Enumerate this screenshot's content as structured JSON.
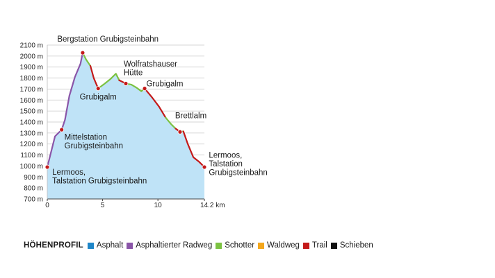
{
  "chart_data": {
    "type": "area",
    "y_ticks": [
      "2100 m",
      "2000 m",
      "1900 m",
      "1800 m",
      "1700 m",
      "1600 m",
      "1500 m",
      "1400 m",
      "1300 m",
      "1200 m",
      "1100 m",
      "1000 m",
      "900 m",
      "800 m",
      "700 m"
    ],
    "x_ticks": [
      "0",
      "5",
      "10",
      "14.2 km"
    ],
    "xlim": [
      0,
      14.2
    ],
    "ylim": [
      700,
      2100
    ],
    "grid": true,
    "fill_color": "#bfe3f7",
    "profile": [
      {
        "x": 0.0,
        "y": 990
      },
      {
        "x": 0.7,
        "y": 1270
      },
      {
        "x": 1.3,
        "y": 1330
      },
      {
        "x": 1.6,
        "y": 1420
      },
      {
        "x": 2.0,
        "y": 1640
      },
      {
        "x": 2.5,
        "y": 1810
      },
      {
        "x": 3.0,
        "y": 1930
      },
      {
        "x": 3.2,
        "y": 2030
      },
      {
        "x": 3.5,
        "y": 1970
      },
      {
        "x": 3.9,
        "y": 1910
      },
      {
        "x": 4.2,
        "y": 1800
      },
      {
        "x": 4.6,
        "y": 1705
      },
      {
        "x": 5.2,
        "y": 1750
      },
      {
        "x": 5.7,
        "y": 1790
      },
      {
        "x": 6.2,
        "y": 1840
      },
      {
        "x": 6.5,
        "y": 1780
      },
      {
        "x": 7.1,
        "y": 1750
      },
      {
        "x": 7.6,
        "y": 1740
      },
      {
        "x": 8.1,
        "y": 1710
      },
      {
        "x": 8.5,
        "y": 1680
      },
      {
        "x": 8.8,
        "y": 1705
      },
      {
        "x": 9.5,
        "y": 1620
      },
      {
        "x": 10.1,
        "y": 1540
      },
      {
        "x": 10.7,
        "y": 1440
      },
      {
        "x": 11.2,
        "y": 1380
      },
      {
        "x": 11.6,
        "y": 1340
      },
      {
        "x": 12.0,
        "y": 1310
      },
      {
        "x": 12.3,
        "y": 1315
      },
      {
        "x": 12.7,
        "y": 1200
      },
      {
        "x": 13.2,
        "y": 1080
      },
      {
        "x": 13.7,
        "y": 1040
      },
      {
        "x": 14.2,
        "y": 990
      }
    ],
    "segments": [
      {
        "surface": "Asphaltierter Radweg",
        "from": 0.0,
        "to": 3.2
      },
      {
        "surface": "Schotter",
        "from": 3.2,
        "to": 3.9
      },
      {
        "surface": "Trail",
        "from": 3.9,
        "to": 4.6
      },
      {
        "surface": "Schotter",
        "from": 4.6,
        "to": 6.5
      },
      {
        "surface": "Trail",
        "from": 6.5,
        "to": 7.1
      },
      {
        "surface": "Schotter",
        "from": 7.1,
        "to": 8.8
      },
      {
        "surface": "Trail",
        "from": 8.8,
        "to": 10.7
      },
      {
        "surface": "Schotter",
        "from": 10.7,
        "to": 11.6
      },
      {
        "surface": "Trail",
        "from": 11.6,
        "to": 12.0
      },
      {
        "surface": "Schotter",
        "from": 12.0,
        "to": 12.3
      },
      {
        "surface": "Trail",
        "from": 12.3,
        "to": 14.2
      }
    ],
    "waypoints": [
      {
        "x": 0.0,
        "y": 990,
        "label": [
          "Lermoos,",
          "Talstation Grubigsteinbahn"
        ],
        "anchor": "start",
        "lx": 0.45,
        "ly": 920
      },
      {
        "x": 1.3,
        "y": 1330,
        "label": [
          "Mittelstation",
          "Grubigsteinbahn"
        ],
        "anchor": "start",
        "lx": 1.55,
        "ly": 1240
      },
      {
        "x": 3.2,
        "y": 2030,
        "label": [
          "Bergstation Grubigsteinbahn"
        ],
        "anchor": "start",
        "lx": 0.9,
        "ly": 2130
      },
      {
        "x": 4.6,
        "y": 1705,
        "label": [
          "Grubigalm"
        ],
        "anchor": "middle",
        "lx": 4.6,
        "ly": 1605
      },
      {
        "x": 7.1,
        "y": 1750,
        "label": [
          "Wolfratshauser",
          "Hütte"
        ],
        "anchor": "start",
        "lx": 6.9,
        "ly": 1905
      },
      {
        "x": 8.8,
        "y": 1705,
        "label": [
          "Grubigalm"
        ],
        "anchor": "start",
        "lx": 8.95,
        "ly": 1725
      },
      {
        "x": 12.0,
        "y": 1310,
        "label": [
          "Brettlalm"
        ],
        "anchor": "start",
        "lx": 11.55,
        "ly": 1435
      },
      {
        "x": 14.2,
        "y": 990,
        "label": [
          "Lermoos,",
          "Talstation",
          "Grubigsteinbahn"
        ],
        "anchor": "start",
        "lx": 14.6,
        "ly": 1075
      }
    ]
  },
  "legend": {
    "title": "HÖHENPROFIL",
    "items": [
      {
        "label": "Asphalt",
        "color": "#1f86c8"
      },
      {
        "label": "Asphaltierter Radweg",
        "color": "#8a55a8"
      },
      {
        "label": "Schotter",
        "color": "#7cc242"
      },
      {
        "label": "Waldweg",
        "color": "#f4a71c"
      },
      {
        "label": "Trail",
        "color": "#c41a1a"
      },
      {
        "label": "Schieben",
        "color": "#111111"
      }
    ]
  }
}
